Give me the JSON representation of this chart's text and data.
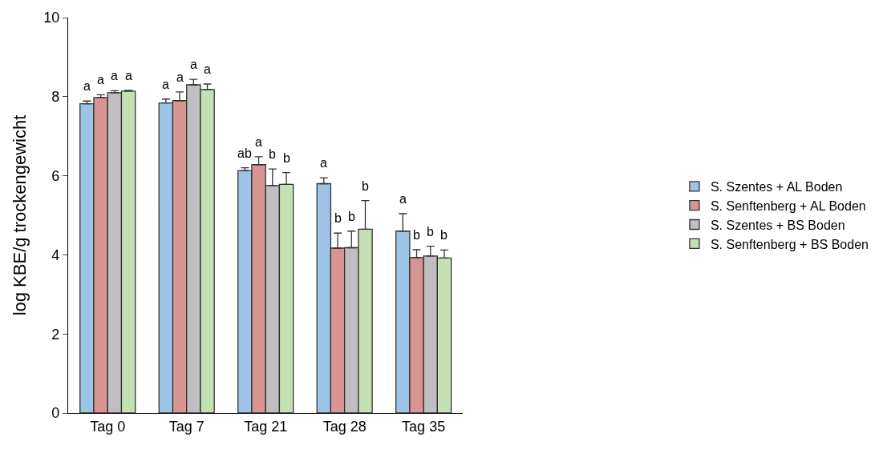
{
  "chart_data": {
    "type": "bar",
    "ylabel": "log KBE/g trockengewicht",
    "categories": [
      "Tag 0",
      "Tag 7",
      "Tag 21",
      "Tag 28",
      "Tag 35"
    ],
    "series": [
      {
        "name": "S. Szentes + AL Boden",
        "color": "#9dc3e6",
        "values": [
          7.82,
          7.84,
          6.13,
          5.8,
          4.6
        ],
        "errors": [
          0.07,
          0.1,
          0.07,
          0.15,
          0.44
        ],
        "value_labels": [
          "a",
          "a",
          "ab",
          "a",
          "a"
        ]
      },
      {
        "name": "S. Senftenberg + AL Boden",
        "color": "#d99594",
        "values": [
          7.98,
          7.9,
          6.28,
          4.17,
          3.93
        ],
        "errors": [
          0.07,
          0.22,
          0.2,
          0.38,
          0.2
        ],
        "value_labels": [
          "a",
          "a",
          "a",
          "b",
          "b"
        ]
      },
      {
        "name": "S. Szentes + BS Boden",
        "color": "#bfbfbf",
        "values": [
          8.1,
          8.3,
          5.75,
          4.18,
          3.97
        ],
        "errors": [
          0.05,
          0.14,
          0.42,
          0.42,
          0.25
        ],
        "value_labels": [
          "a",
          "a",
          "b",
          "b",
          "b"
        ]
      },
      {
        "name": "S. Senftenberg + BS Boden",
        "color": "#c5e0b4",
        "values": [
          8.14,
          8.18,
          5.78,
          4.65,
          3.92
        ],
        "errors": [
          0.02,
          0.14,
          0.3,
          0.72,
          0.2
        ],
        "value_labels": [
          "a",
          "a",
          "b",
          "b",
          "b"
        ]
      }
    ],
    "ylim": [
      0,
      10
    ],
    "yticks": [
      0,
      2,
      4,
      6,
      8,
      10
    ],
    "legend": "right"
  }
}
